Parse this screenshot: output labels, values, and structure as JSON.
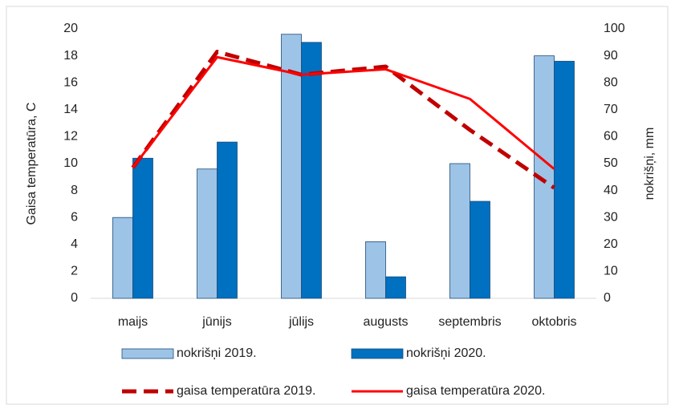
{
  "chart_data": {
    "type": "bar",
    "categories": [
      "maijs",
      "jūnijs",
      "jūlijs",
      "augusts",
      "septembris",
      "oktobris"
    ],
    "y_label": "Gaisa temperatūra, C",
    "y2_label": "nokrišņi, mm",
    "ylim": [
      0,
      20
    ],
    "yticks": [
      0,
      2,
      4,
      6,
      8,
      10,
      12,
      14,
      16,
      18,
      20
    ],
    "y2lim": [
      0,
      100
    ],
    "y2ticks": [
      0,
      10,
      20,
      30,
      40,
      50,
      60,
      70,
      80,
      90,
      100
    ],
    "series": [
      {
        "name": "nokrišņi 2019.",
        "type": "bar",
        "axis": "y2",
        "color": "#9dc3e6",
        "values": [
          30,
          48,
          98,
          21,
          50,
          90
        ]
      },
      {
        "name": "nokrišņi 2020.",
        "type": "bar",
        "axis": "y2",
        "color": "#0070c0",
        "values": [
          52,
          58,
          95,
          8,
          36,
          88
        ]
      },
      {
        "name": "gaisa temperatūra 2019.",
        "type": "line",
        "dashed": true,
        "color": "#c00000",
        "values": [
          9.7,
          18.3,
          16.6,
          17.2,
          12.5,
          8.2
        ]
      },
      {
        "name": "gaisa temperatūra 2020.",
        "type": "line",
        "color": "#ff0000",
        "values": [
          9.7,
          17.9,
          16.6,
          17.0,
          14.8,
          9.6
        ]
      }
    ]
  }
}
